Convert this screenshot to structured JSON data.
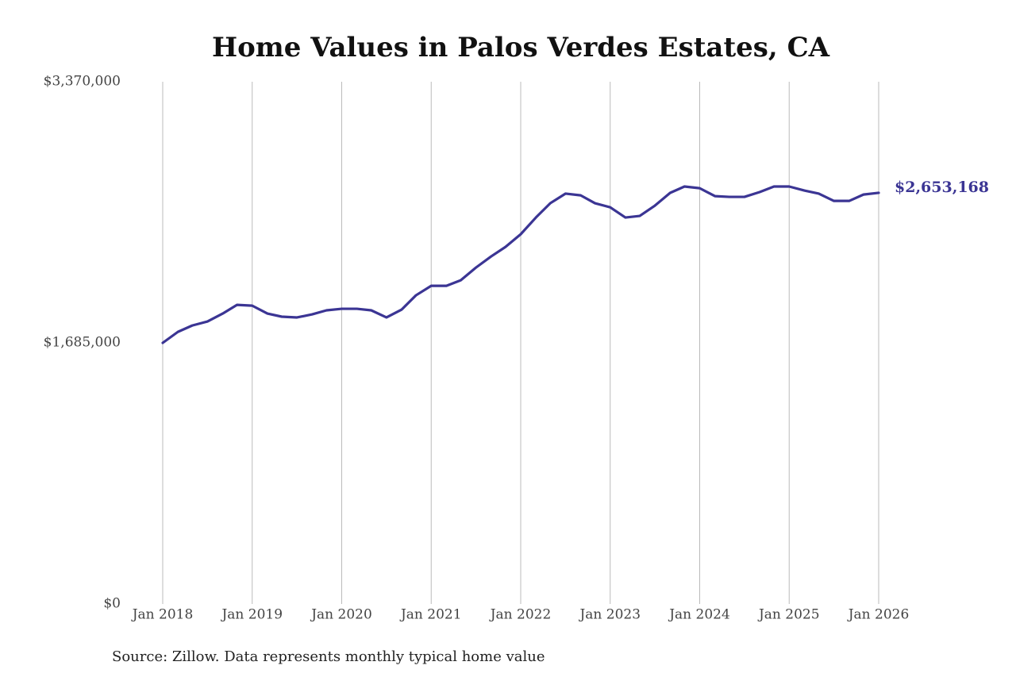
{
  "chart_data": {
    "type": "line",
    "title": "Home Values in Palos Verdes Estates, CA",
    "source": "Source: Zillow. Data represents monthly typical home value",
    "x": [
      2018,
      2018.17,
      2018.33,
      2018.5,
      2018.67,
      2018.83,
      2019,
      2019.17,
      2019.33,
      2019.5,
      2019.67,
      2019.83,
      2020,
      2020.17,
      2020.33,
      2020.5,
      2020.67,
      2020.83,
      2021,
      2021.17,
      2021.33,
      2021.5,
      2021.67,
      2021.83,
      2022,
      2022.17,
      2022.33,
      2022.5,
      2022.67,
      2022.83,
      2023,
      2023.17,
      2023.33,
      2023.5,
      2023.67,
      2023.83,
      2024,
      2024.17,
      2024.33,
      2024.5,
      2024.67,
      2024.83,
      2025,
      2025.17,
      2025.33,
      2025.5,
      2025.67,
      2025.83,
      2026
    ],
    "series": [
      {
        "name": "Typical home value",
        "color": "#3b3594",
        "values": [
          1685000,
          1756000,
          1797000,
          1823000,
          1874000,
          1930000,
          1925000,
          1874000,
          1854000,
          1849000,
          1869000,
          1895000,
          1905000,
          1905000,
          1895000,
          1849000,
          1900000,
          1992000,
          2053000,
          2053000,
          2089000,
          2171000,
          2243000,
          2304000,
          2386000,
          2494000,
          2586000,
          2648000,
          2637000,
          2586000,
          2560000,
          2494000,
          2504000,
          2571000,
          2653000,
          2694000,
          2683000,
          2632000,
          2627000,
          2627000,
          2658000,
          2694000,
          2694000,
          2668000,
          2648000,
          2601000,
          2601000,
          2642000,
          2653168
        ],
        "value_labels": [
          null,
          null,
          null,
          null,
          null,
          null,
          null,
          null,
          null,
          null,
          null,
          null,
          null,
          null,
          null,
          null,
          null,
          null,
          null,
          null,
          null,
          null,
          null,
          null,
          null,
          null,
          null,
          null,
          null,
          null,
          null,
          null,
          null,
          null,
          null,
          null,
          null,
          null,
          null,
          null,
          null,
          null,
          null,
          null,
          null,
          null,
          null,
          null,
          "$2,653,168"
        ]
      }
    ],
    "xlim": [
      2018,
      2026
    ],
    "xticks": [
      {
        "value": 2018,
        "label": "Jan 2018"
      },
      {
        "value": 2019,
        "label": "Jan 2019"
      },
      {
        "value": 2020,
        "label": "Jan 2020"
      },
      {
        "value": 2021,
        "label": "Jan 2021"
      },
      {
        "value": 2022,
        "label": "Jan 2022"
      },
      {
        "value": 2023,
        "label": "Jan 2023"
      },
      {
        "value": 2024,
        "label": "Jan 2024"
      },
      {
        "value": 2025,
        "label": "Jan 2025"
      },
      {
        "value": 2026,
        "label": "Jan 2026"
      }
    ],
    "ylim": [
      0,
      3370000
    ],
    "yticks": [
      {
        "value": 0,
        "label": "$0"
      },
      {
        "value": 1685000,
        "label": "$1,685,000"
      },
      {
        "value": 3370000,
        "label": "$3,370,000"
      }
    ],
    "grid": "x"
  }
}
